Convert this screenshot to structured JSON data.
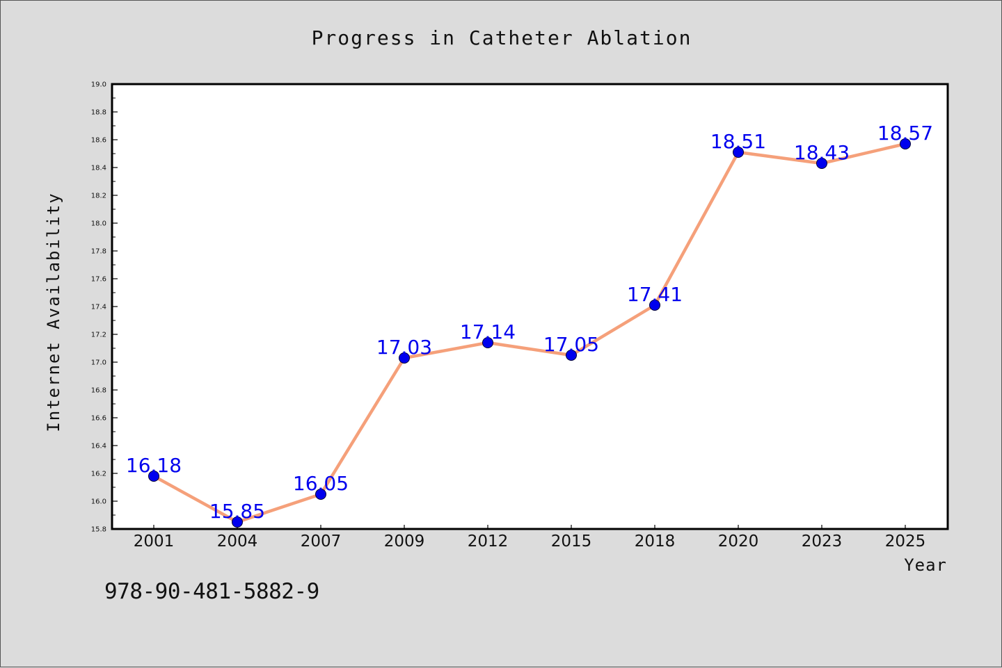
{
  "colors": {
    "background": "#dcdcdc",
    "plot_background": "#ffffff",
    "line": "#f5a07a",
    "marker": "#0000ee",
    "data_label": "#0000ee",
    "text": "#111111"
  },
  "isbn": "978-90-481-5882-9",
  "chart_data": {
    "type": "line",
    "title": "Progress in Catheter Ablation",
    "xlabel": "Year",
    "ylabel": "Internet Availability",
    "categories": [
      "2001",
      "2004",
      "2007",
      "2009",
      "2012",
      "2015",
      "2018",
      "2020",
      "2023",
      "2025"
    ],
    "series": [
      {
        "values": [
          16.18,
          15.85,
          16.05,
          17.03,
          17.14,
          17.05,
          17.41,
          18.51,
          18.43,
          18.57
        ],
        "labels": [
          "16.18",
          "15.85",
          "16.05",
          "17.03",
          "17.14",
          "17.05",
          "17.41",
          "18.51",
          "18.43",
          "18.57"
        ]
      }
    ],
    "ylim": [
      15.8,
      19.0
    ],
    "yticks": [
      "15.8",
      "16.0",
      "16.2",
      "16.4",
      "16.6",
      "16.8",
      "17.0",
      "17.2",
      "17.4",
      "17.6",
      "17.8",
      "18.0",
      "18.2",
      "18.4",
      "18.6",
      "18.8",
      "19.0"
    ],
    "grid": false,
    "legend": "none"
  }
}
